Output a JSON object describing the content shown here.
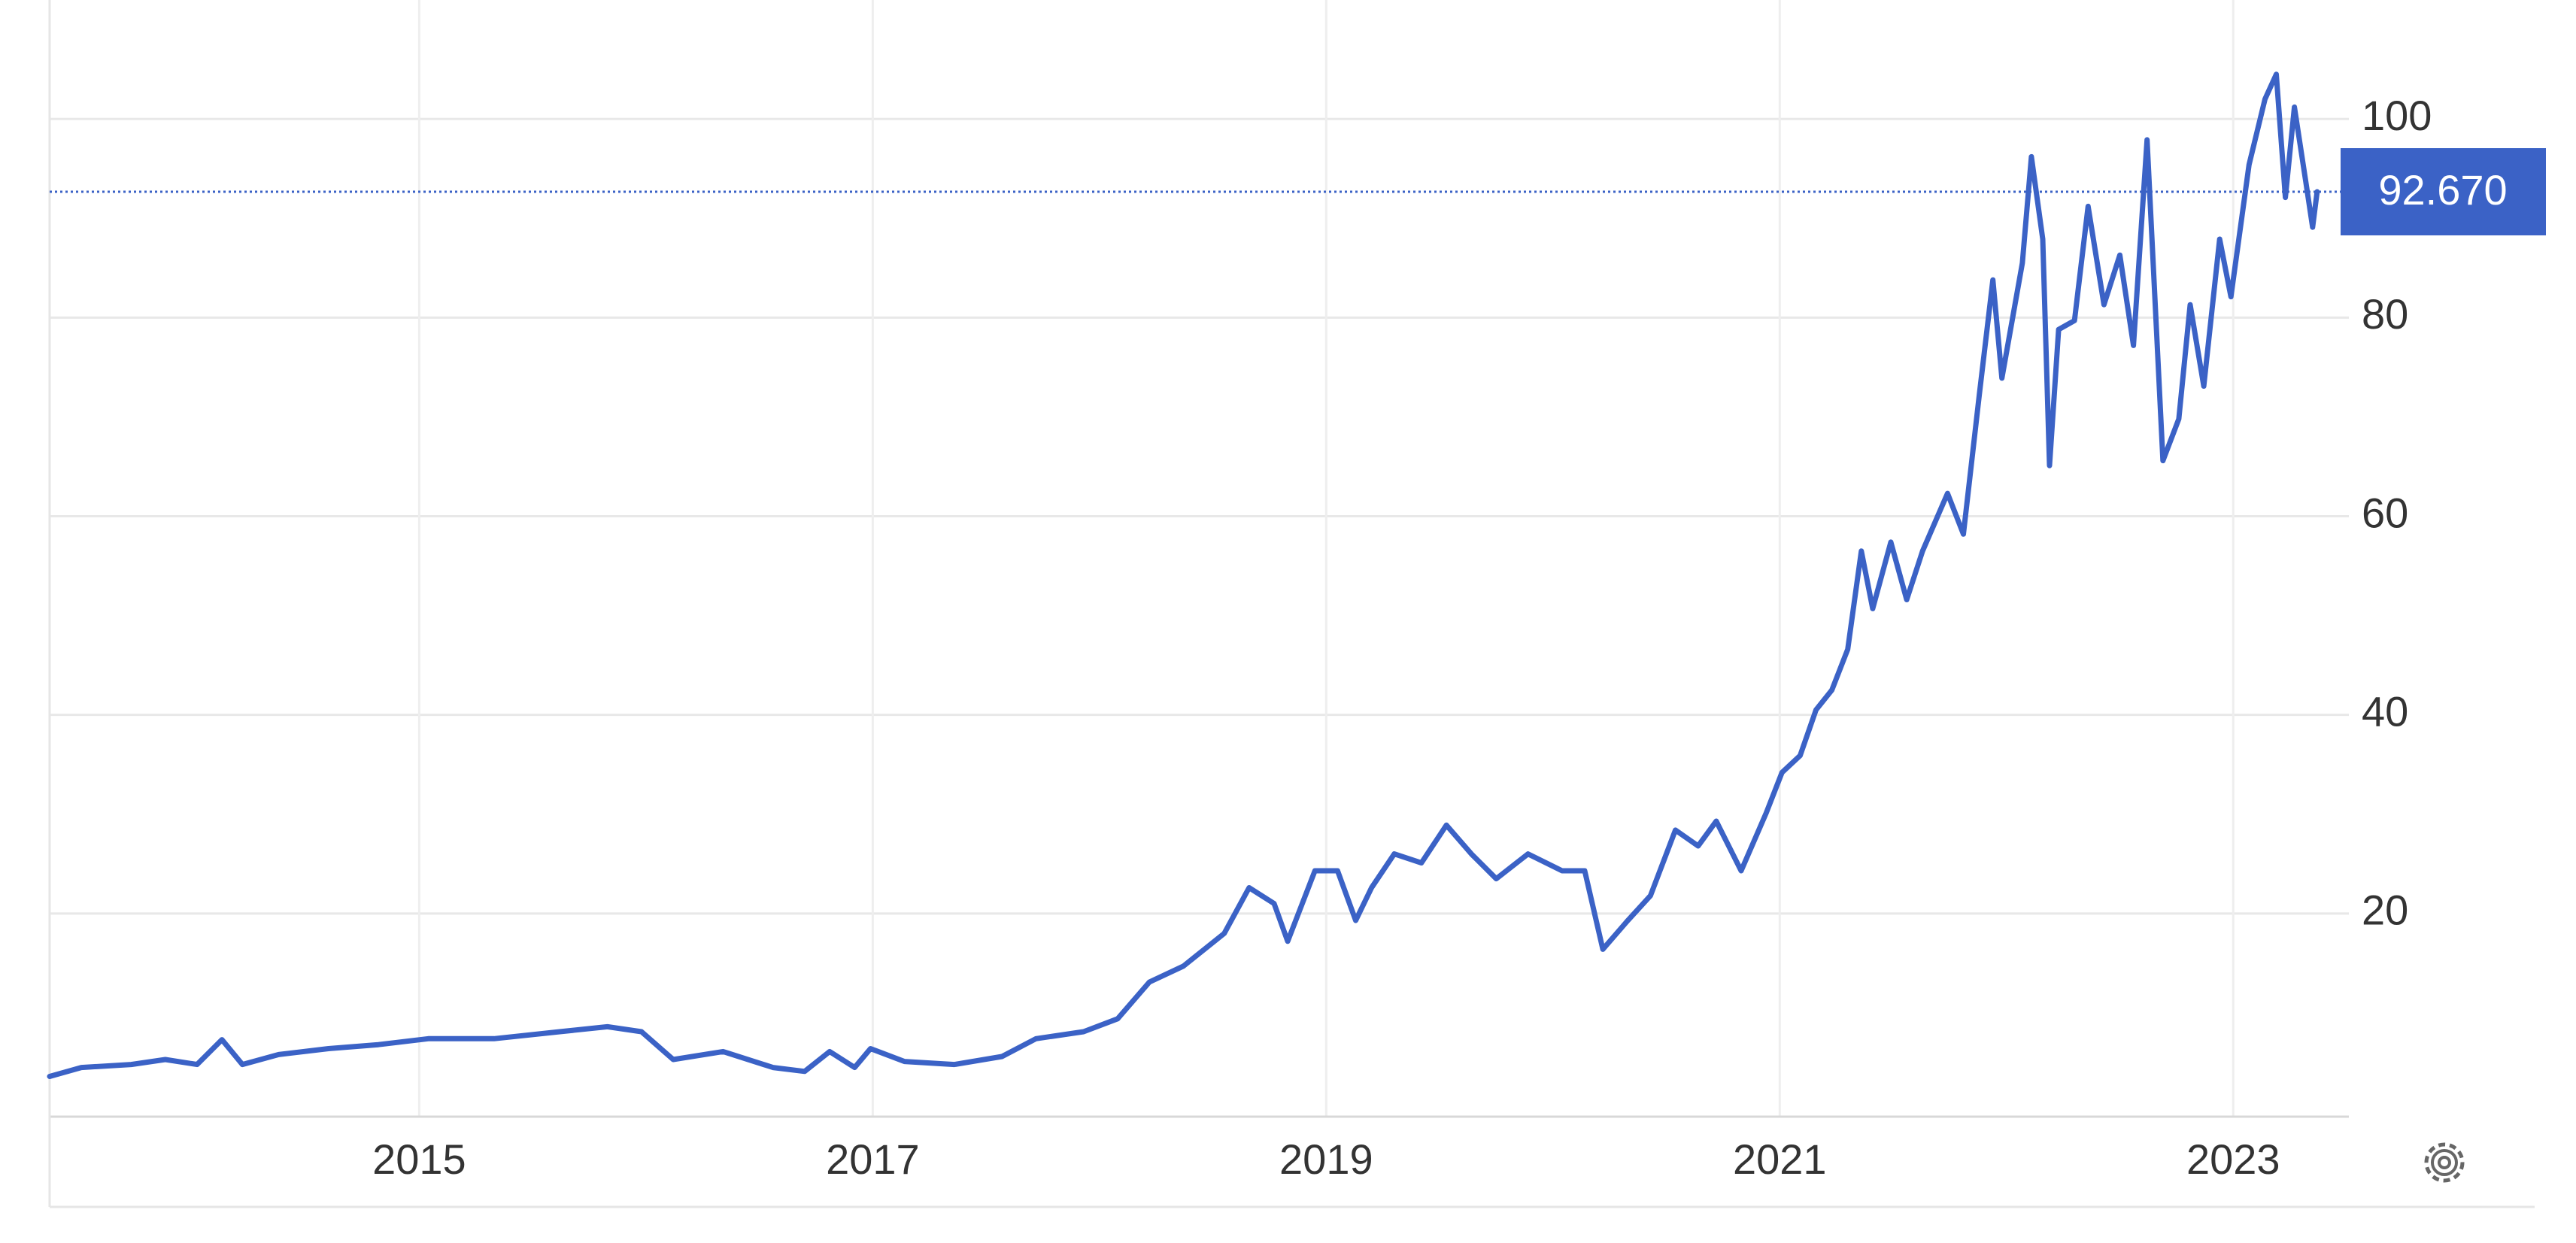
{
  "chart_data": {
    "type": "line",
    "x": [
      2013.37,
      2013.51,
      2013.73,
      2013.88,
      2014.02,
      2014.13,
      2014.22,
      2014.38,
      2014.6,
      2014.82,
      2015.04,
      2015.33,
      2015.62,
      2015.83,
      2015.98,
      2016.12,
      2016.34,
      2016.56,
      2016.7,
      2016.81,
      2016.92,
      2016.99,
      2017.14,
      2017.36,
      2017.57,
      2017.72,
      2017.93,
      2018.08,
      2018.22,
      2018.37,
      2018.55,
      2018.66,
      2018.77,
      2018.83,
      2018.95,
      2019.05,
      2019.13,
      2019.2,
      2019.3,
      2019.42,
      2019.53,
      2019.64,
      2019.75,
      2019.89,
      2020.04,
      2020.14,
      2020.22,
      2020.33,
      2020.43,
      2020.54,
      2020.64,
      2020.72,
      2020.83,
      2020.94,
      2021.01,
      2021.09,
      2021.16,
      2021.23,
      2021.3,
      2021.36,
      2021.41,
      2021.49,
      2021.56,
      2021.63,
      2021.74,
      2021.81,
      2021.88,
      2021.94,
      2021.98,
      2022.07,
      2022.11,
      2022.16,
      2022.19,
      2022.23,
      2022.3,
      2022.36,
      2022.43,
      2022.5,
      2022.56,
      2022.62,
      2022.69,
      2022.76,
      2022.81,
      2022.87,
      2022.94,
      2022.99,
      2023.07,
      2023.14,
      2023.19,
      2023.23,
      2023.27,
      2023.32,
      2023.35,
      2023.37
    ],
    "values": [
      3.6,
      4.5,
      4.8,
      5.3,
      4.8,
      7.3,
      4.8,
      5.8,
      6.4,
      6.8,
      7.4,
      7.4,
      8.1,
      8.6,
      8.1,
      5.3,
      6.1,
      4.5,
      4.1,
      6.1,
      4.5,
      6.4,
      5.1,
      4.8,
      5.6,
      7.4,
      8.1,
      9.4,
      13.1,
      14.7,
      18.0,
      22.6,
      21.0,
      17.2,
      24.3,
      24.3,
      19.3,
      22.6,
      26.0,
      25.1,
      28.9,
      26.0,
      23.5,
      26.0,
      24.3,
      24.3,
      16.4,
      19.3,
      21.8,
      28.4,
      26.8,
      29.3,
      24.3,
      30.1,
      34.2,
      35.9,
      40.5,
      42.5,
      46.6,
      56.5,
      50.7,
      57.4,
      51.6,
      56.5,
      62.3,
      58.2,
      72.2,
      83.8,
      73.9,
      85.5,
      96.2,
      87.9,
      65.1,
      78.8,
      79.7,
      91.2,
      81.3,
      86.3,
      77.2,
      97.9,
      65.6,
      69.8,
      81.3,
      73.1,
      87.9,
      82.1,
      95.4,
      102.0,
      104.5,
      92.1,
      101.2,
      93.7,
      89.1,
      92.67
    ],
    "color": "#3b62c6",
    "xlim": [
      2013.37,
      2023.51
    ],
    "xticks": [
      2015,
      2017,
      2019,
      2021,
      2023
    ],
    "ylim": [
      0,
      111.6
    ],
    "yticks": [
      20,
      40,
      60,
      80,
      100
    ],
    "grid": true,
    "last_value": {
      "value": 92.67,
      "label": "92.670"
    }
  }
}
